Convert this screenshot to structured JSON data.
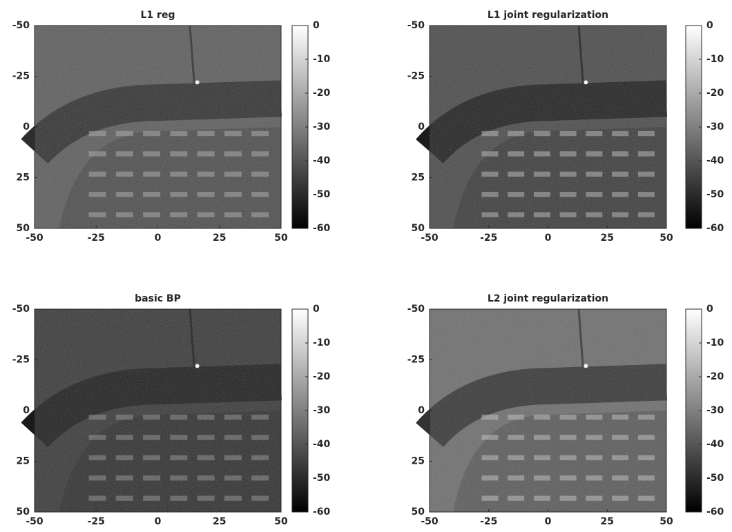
{
  "chart_data": [
    {
      "type": "heatmap",
      "title": "L1 reg",
      "colormap": "gray",
      "xlim": [
        -50,
        50
      ],
      "xticks": [
        -50,
        -25,
        0,
        25,
        50
      ],
      "ylim": [
        50,
        -50
      ],
      "yticks": [
        -50,
        -25,
        0,
        25,
        50
      ],
      "clim": [
        -60,
        0
      ],
      "cticks": [
        0,
        -10,
        -20,
        -30,
        -40,
        -50,
        -60
      ]
    },
    {
      "type": "heatmap",
      "title": "L1 joint regularization",
      "colormap": "gray",
      "xlim": [
        -50,
        50
      ],
      "xticks": [
        -50,
        -25,
        0,
        25,
        50
      ],
      "ylim": [
        50,
        -50
      ],
      "yticks": [
        -50,
        -25,
        0,
        25,
        50
      ],
      "clim": [
        -60,
        0
      ],
      "cticks": [
        0,
        -10,
        -20,
        -30,
        -40,
        -50,
        -60
      ]
    },
    {
      "type": "heatmap",
      "title": "basic BP",
      "colormap": "gray",
      "xlim": [
        -50,
        50
      ],
      "xticks": [
        -50,
        -25,
        0,
        25,
        50
      ],
      "ylim": [
        50,
        -50
      ],
      "yticks": [
        -50,
        -25,
        0,
        25,
        50
      ],
      "clim": [
        -60,
        0
      ],
      "cticks": [
        0,
        -10,
        -20,
        -30,
        -40,
        -50,
        -60
      ]
    },
    {
      "type": "heatmap",
      "title": "L2 joint regularization",
      "colormap": "gray",
      "xlim": [
        -50,
        50
      ],
      "xticks": [
        -50,
        -25,
        0,
        25,
        50
      ],
      "ylim": [
        50,
        -50
      ],
      "yticks": [
        -50,
        -25,
        0,
        25,
        50
      ],
      "clim": [
        -60,
        0
      ],
      "cticks": [
        0,
        -10,
        -20,
        -30,
        -40,
        -50,
        -60
      ]
    }
  ]
}
